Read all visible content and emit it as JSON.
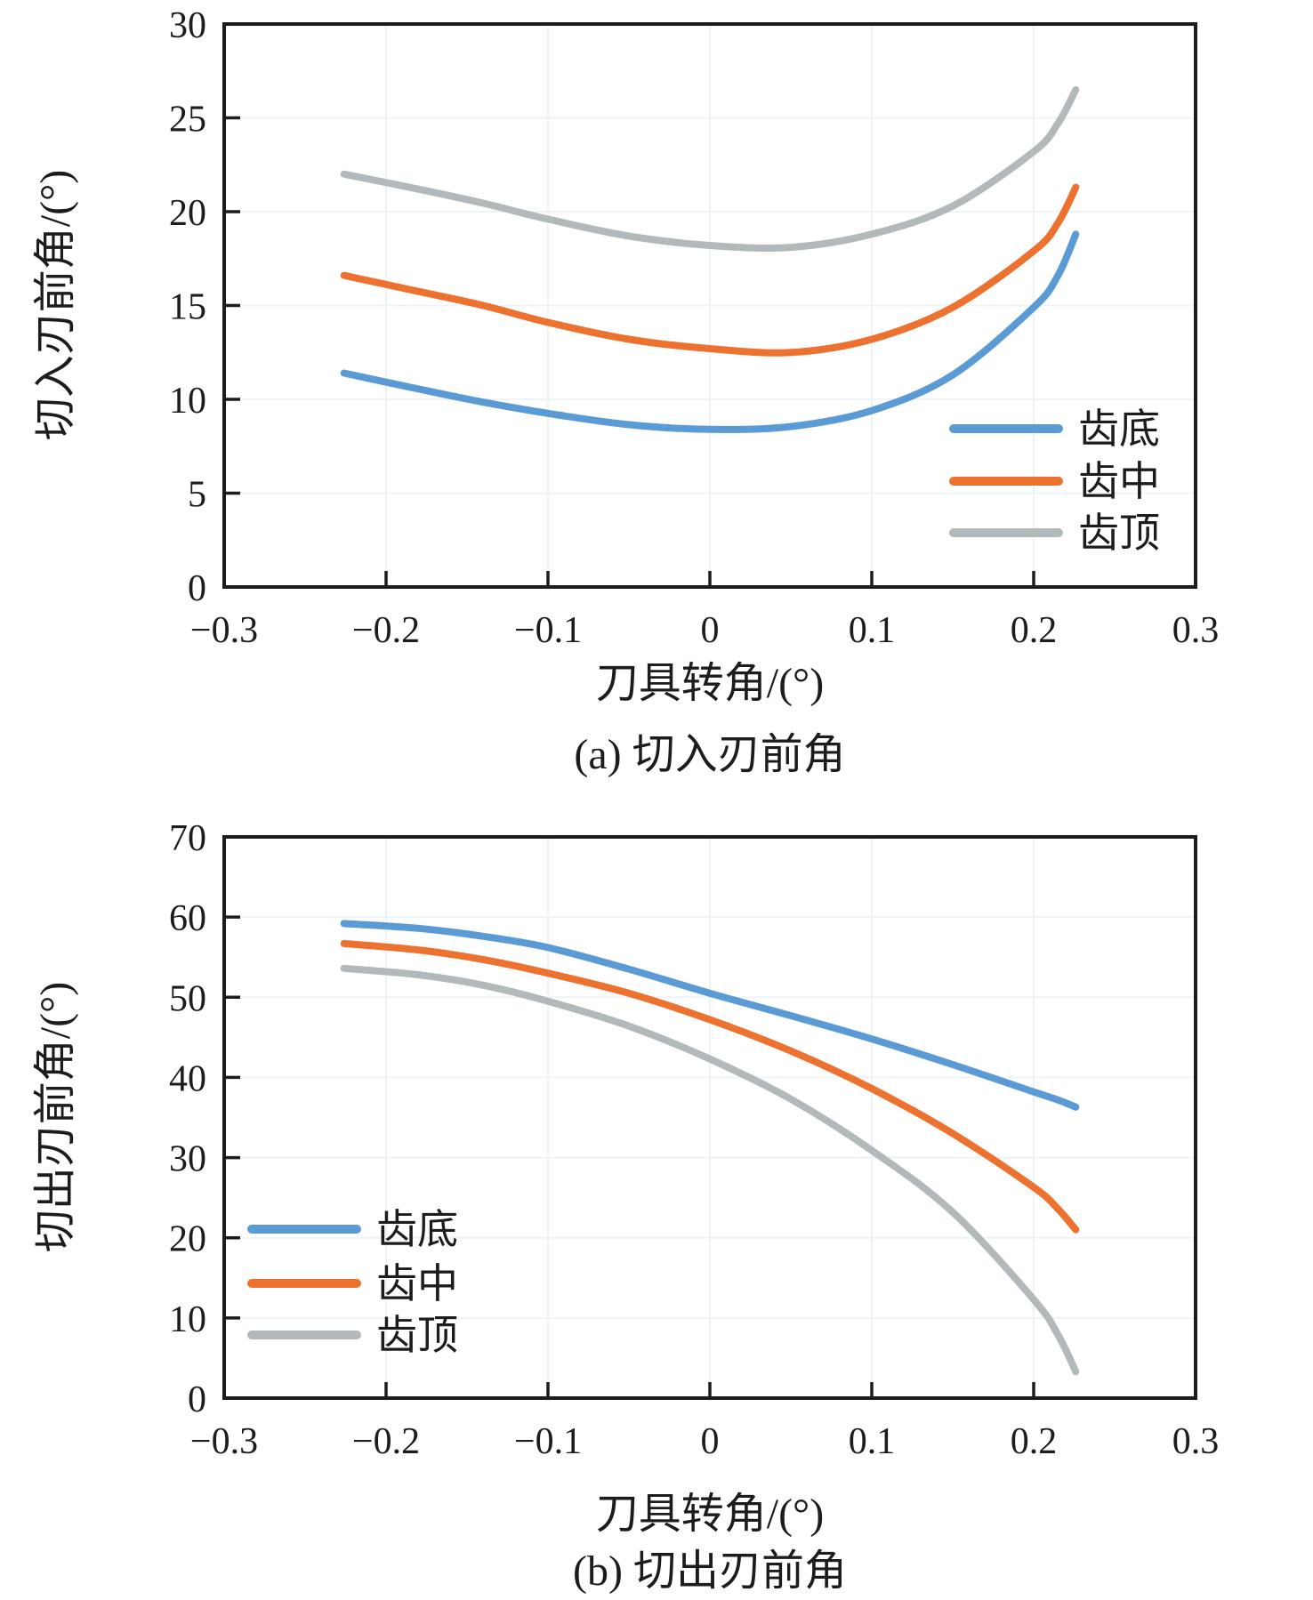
{
  "page": {
    "background": "#ffffff",
    "axis_color": "#1c1c1c",
    "grid_color": "#eef3f8"
  },
  "chart_data": [
    {
      "type": "line",
      "panel": "a",
      "subtitle": "(a) 切入刃前角",
      "xlabel": "刀具转角/(°)",
      "ylabel": "切入刃前角/(°)",
      "xlim": [
        -0.3,
        0.3
      ],
      "ylim": [
        0,
        30
      ],
      "xtick_values": [
        -0.3,
        -0.2,
        -0.1,
        0,
        0.1,
        0.2,
        0.3
      ],
      "xtick_labels": [
        "−0.3",
        "−0.2",
        "−0.1",
        "0",
        "0.1",
        "0.2",
        "0.3"
      ],
      "ytick_values": [
        0,
        5,
        10,
        15,
        20,
        25,
        30
      ],
      "ytick_labels": [
        "0",
        "5",
        "10",
        "15",
        "20",
        "25",
        "30"
      ],
      "grid": "very-faint",
      "legend_position": "inside-lower-right",
      "x": [
        -0.226,
        -0.18,
        -0.14,
        -0.1,
        -0.05,
        0,
        0.05,
        0.1,
        0.15,
        0.2,
        0.215,
        0.226
      ],
      "series": [
        {
          "name": "齿底",
          "color": "#5B9BD5",
          "values": [
            11.4,
            10.55,
            9.85,
            9.25,
            8.65,
            8.4,
            8.55,
            9.4,
            11.3,
            14.9,
            16.6,
            18.8
          ]
        },
        {
          "name": "齿中",
          "color": "#ED7230",
          "values": [
            16.6,
            15.75,
            15.0,
            14.1,
            13.2,
            12.7,
            12.5,
            13.2,
            14.9,
            17.9,
            19.4,
            21.3
          ]
        },
        {
          "name": "齿顶",
          "color": "#B3B8BB",
          "values": [
            22.0,
            21.2,
            20.45,
            19.6,
            18.7,
            18.2,
            18.1,
            18.8,
            20.3,
            23.2,
            24.7,
            26.5
          ]
        }
      ]
    },
    {
      "type": "line",
      "panel": "b",
      "subtitle": "(b) 切出刃前角",
      "xlabel": "刀具转角/(°)",
      "ylabel": "切出刃前角/(°)",
      "xlim": [
        -0.3,
        0.3
      ],
      "ylim": [
        0,
        70
      ],
      "xtick_values": [
        -0.3,
        -0.2,
        -0.1,
        0,
        0.1,
        0.2,
        0.3
      ],
      "xtick_labels": [
        "−0.3",
        "−0.2",
        "−0.1",
        "0",
        "0.1",
        "0.2",
        "0.3"
      ],
      "ytick_values": [
        0,
        10,
        20,
        30,
        40,
        50,
        60,
        70
      ],
      "ytick_labels": [
        "0",
        "10",
        "20",
        "30",
        "40",
        "50",
        "60",
        "70"
      ],
      "grid": "very-faint",
      "legend_position": "inside-lower-left",
      "x": [
        -0.226,
        -0.18,
        -0.14,
        -0.1,
        -0.05,
        0,
        0.05,
        0.1,
        0.15,
        0.2,
        0.215,
        0.226
      ],
      "series": [
        {
          "name": "齿底",
          "color": "#5B9BD5",
          "values": [
            59.2,
            58.6,
            57.6,
            56.2,
            53.5,
            50.5,
            47.7,
            44.8,
            41.6,
            38.2,
            37.2,
            36.3
          ]
        },
        {
          "name": "齿中",
          "color": "#ED7230",
          "values": [
            56.7,
            55.9,
            54.7,
            53.0,
            50.5,
            47.2,
            43.3,
            38.6,
            33.0,
            26.3,
            23.6,
            21.0
          ]
        },
        {
          "name": "齿顶",
          "color": "#B3B8BB",
          "values": [
            53.6,
            52.8,
            51.5,
            49.5,
            46.4,
            42.3,
            37.3,
            30.9,
            23.2,
            12.3,
            7.9,
            3.3
          ]
        }
      ]
    }
  ]
}
